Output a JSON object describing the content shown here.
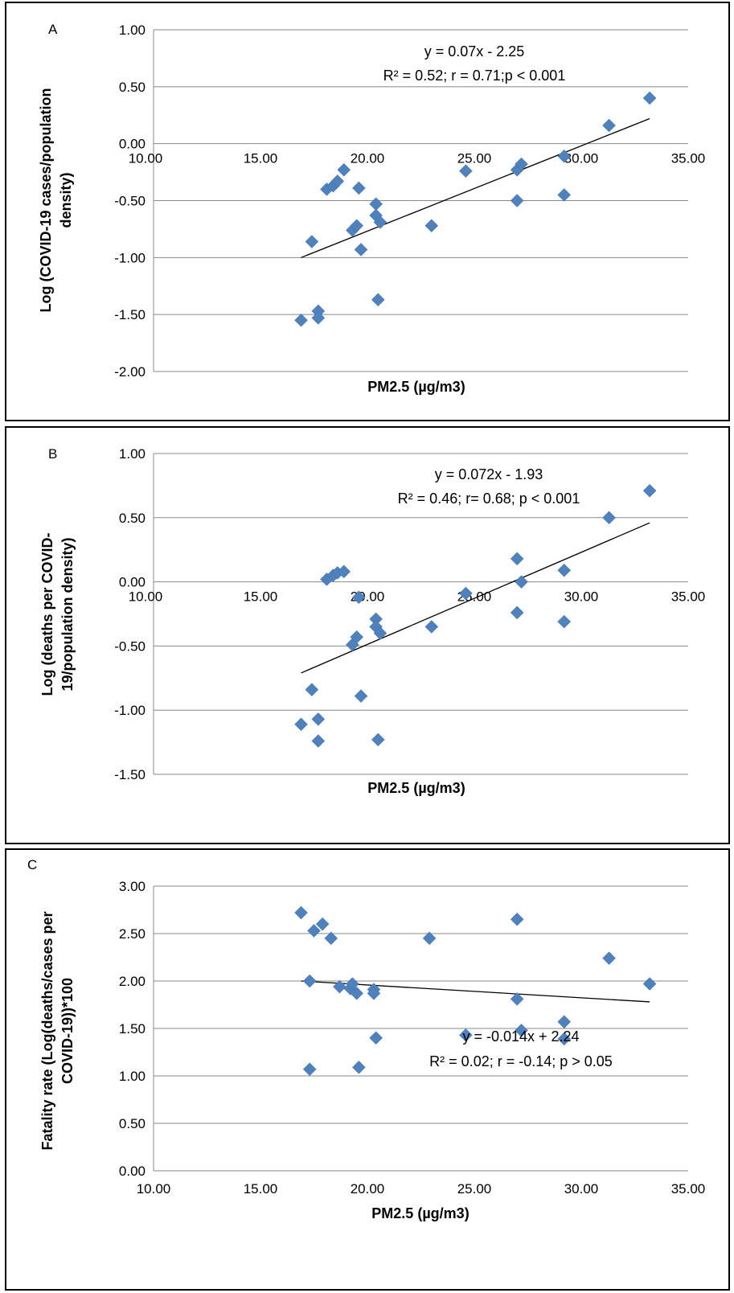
{
  "chart_data": [
    {
      "type": "scatter",
      "panel_label": "A",
      "xlabel": "PM2.5 (µg/m3)",
      "ylabel_lines": [
        "Log (COVID-19 cases/population",
        "density)"
      ],
      "xlim": [
        10,
        35
      ],
      "ylim": [
        -2,
        1
      ],
      "y_ticks": [
        "1.00",
        "0.50",
        "0.00",
        "-0.50",
        "-1.00",
        "-1.50",
        "-2.00"
      ],
      "x_ticks": [
        "10.00",
        "15.00",
        "20.00",
        "25.00",
        "30.00",
        "35.00"
      ],
      "x_ticks_at_zero": true,
      "grid": true,
      "equation": "y = 0.07x - 2.25",
      "stats": "R² =  0.52; r = 0.71;p < 0.001",
      "trendline": {
        "x": [
          16.9,
          33.2
        ],
        "y": [
          -1.0,
          0.22
        ]
      },
      "points": [
        {
          "x": 16.9,
          "y": -1.55
        },
        {
          "x": 17.4,
          "y": -0.86
        },
        {
          "x": 17.7,
          "y": -1.47
        },
        {
          "x": 17.7,
          "y": -1.53
        },
        {
          "x": 18.1,
          "y": -0.4
        },
        {
          "x": 18.4,
          "y": -0.37
        },
        {
          "x": 18.6,
          "y": -0.33
        },
        {
          "x": 18.9,
          "y": -0.23
        },
        {
          "x": 19.3,
          "y": -0.76
        },
        {
          "x": 19.5,
          "y": -0.72
        },
        {
          "x": 19.6,
          "y": -0.39
        },
        {
          "x": 19.7,
          "y": -0.93
        },
        {
          "x": 20.4,
          "y": -0.53
        },
        {
          "x": 20.4,
          "y": -0.63
        },
        {
          "x": 20.6,
          "y": -0.69
        },
        {
          "x": 20.5,
          "y": -1.37
        },
        {
          "x": 23.0,
          "y": -0.72
        },
        {
          "x": 24.6,
          "y": -0.24
        },
        {
          "x": 27.0,
          "y": -0.23
        },
        {
          "x": 27.0,
          "y": -0.5
        },
        {
          "x": 27.2,
          "y": -0.18
        },
        {
          "x": 29.2,
          "y": -0.11
        },
        {
          "x": 29.2,
          "y": -0.45
        },
        {
          "x": 31.3,
          "y": 0.16
        },
        {
          "x": 33.2,
          "y": 0.4
        }
      ]
    },
    {
      "type": "scatter",
      "panel_label": "B",
      "xlabel": "PM2.5 (µg/m3)",
      "ylabel_lines": [
        "Log (deaths per COVID-",
        "19/population density)"
      ],
      "xlim": [
        10,
        35
      ],
      "ylim": [
        -1.5,
        1
      ],
      "y_ticks": [
        "1.00",
        "0.50",
        "0.00",
        "-0.50",
        "-1.00",
        "-1.50"
      ],
      "x_ticks": [
        "10.00",
        "15.00",
        "20.00",
        "25.00",
        "30.00",
        "35.00"
      ],
      "x_ticks_at_zero": true,
      "grid": true,
      "equation": "y = 0.072x - 1.93",
      "stats": "R² = 0.46; r= 0.68; p < 0.001",
      "trendline": {
        "x": [
          16.9,
          33.2
        ],
        "y": [
          -0.71,
          0.46
        ]
      },
      "points": [
        {
          "x": 16.9,
          "y": -1.11
        },
        {
          "x": 17.4,
          "y": -0.84
        },
        {
          "x": 17.7,
          "y": -1.07
        },
        {
          "x": 17.7,
          "y": -1.24
        },
        {
          "x": 18.1,
          "y": 0.02
        },
        {
          "x": 18.4,
          "y": 0.05
        },
        {
          "x": 18.6,
          "y": 0.07
        },
        {
          "x": 18.9,
          "y": 0.08
        },
        {
          "x": 19.3,
          "y": -0.49
        },
        {
          "x": 19.5,
          "y": -0.43
        },
        {
          "x": 19.6,
          "y": -0.12
        },
        {
          "x": 19.7,
          "y": -0.89
        },
        {
          "x": 20.4,
          "y": -0.29
        },
        {
          "x": 20.4,
          "y": -0.35
        },
        {
          "x": 20.6,
          "y": -0.4
        },
        {
          "x": 20.5,
          "y": -1.23
        },
        {
          "x": 23.0,
          "y": -0.35
        },
        {
          "x": 24.6,
          "y": -0.09
        },
        {
          "x": 27.0,
          "y": 0.18
        },
        {
          "x": 27.0,
          "y": -0.24
        },
        {
          "x": 27.2,
          "y": 0.0
        },
        {
          "x": 29.2,
          "y": 0.09
        },
        {
          "x": 29.2,
          "y": -0.31
        },
        {
          "x": 31.3,
          "y": 0.5
        },
        {
          "x": 33.2,
          "y": 0.71
        }
      ]
    },
    {
      "type": "scatter",
      "panel_label": "C",
      "xlabel": "PM2.5 (µg/m3)",
      "ylabel_lines": [
        "Fatality rate (Log(deaths/cases per",
        "COVID-19))*100"
      ],
      "xlim": [
        10,
        35
      ],
      "ylim": [
        0,
        3
      ],
      "y_ticks": [
        "3.00",
        "2.50",
        "2.00",
        "1.50",
        "1.00",
        "0.50",
        "0.00"
      ],
      "x_ticks": [
        "10.00",
        "15.00",
        "20.00",
        "25.00",
        "30.00",
        "35.00"
      ],
      "x_ticks_at_zero": false,
      "grid": true,
      "equation": "y = -0.014x + 2.24",
      "stats": "R² = 0.02; r = -0.14; p > 0.05",
      "trendline": {
        "x": [
          16.9,
          33.2
        ],
        "y": [
          2.0,
          1.78
        ]
      },
      "points": [
        {
          "x": 16.9,
          "y": 2.72
        },
        {
          "x": 17.3,
          "y": 2.0
        },
        {
          "x": 17.3,
          "y": 1.07
        },
        {
          "x": 17.5,
          "y": 2.53
        },
        {
          "x": 17.9,
          "y": 2.6
        },
        {
          "x": 18.3,
          "y": 2.45
        },
        {
          "x": 18.7,
          "y": 1.94
        },
        {
          "x": 19.2,
          "y": 1.92
        },
        {
          "x": 19.3,
          "y": 1.97
        },
        {
          "x": 19.5,
          "y": 1.87
        },
        {
          "x": 19.6,
          "y": 1.09
        },
        {
          "x": 20.3,
          "y": 1.91
        },
        {
          "x": 20.3,
          "y": 1.87
        },
        {
          "x": 20.4,
          "y": 1.4
        },
        {
          "x": 22.9,
          "y": 2.45
        },
        {
          "x": 24.6,
          "y": 1.43
        },
        {
          "x": 27.0,
          "y": 2.65
        },
        {
          "x": 27.0,
          "y": 1.81
        },
        {
          "x": 27.2,
          "y": 1.48
        },
        {
          "x": 29.2,
          "y": 1.57
        },
        {
          "x": 29.2,
          "y": 1.39
        },
        {
          "x": 31.3,
          "y": 2.24
        },
        {
          "x": 33.2,
          "y": 1.97
        }
      ]
    }
  ],
  "colors": {
    "marker": "#4F81BD",
    "trendline": "#000000",
    "grid": "#888888"
  }
}
